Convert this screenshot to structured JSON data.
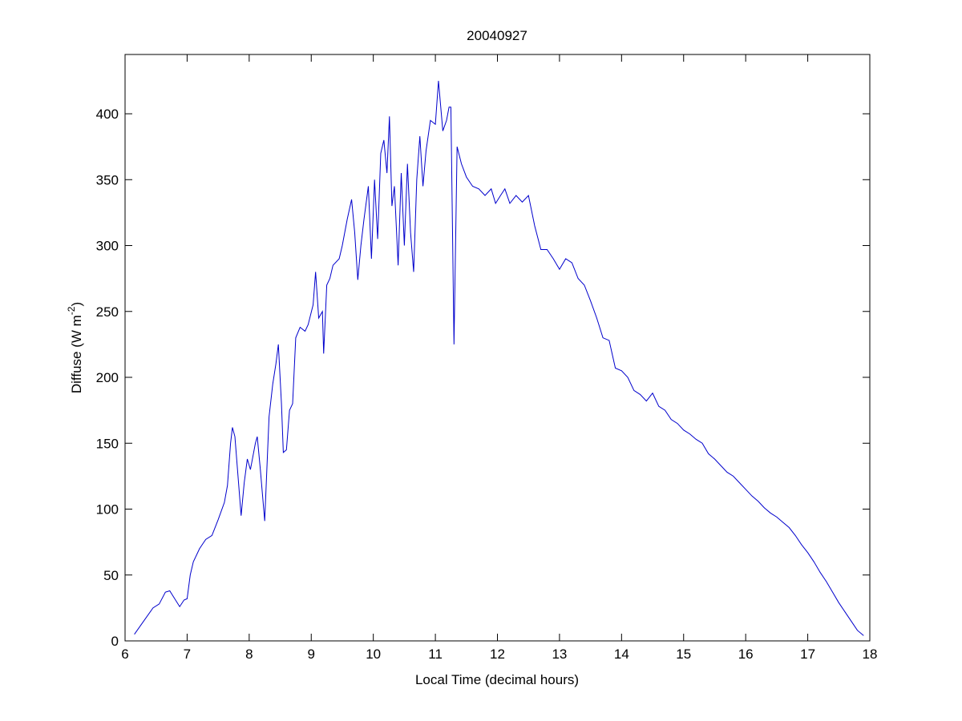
{
  "chart_data": {
    "type": "line",
    "title": "20040927",
    "xlabel": "Local Time (decimal hours)",
    "ylabel": {
      "text": "Diffuse (W m",
      "superscript": "-2",
      "suffix": ")"
    },
    "xlim": [
      6,
      18
    ],
    "xticks": [
      6,
      7,
      8,
      9,
      10,
      11,
      12,
      13,
      14,
      15,
      16,
      17,
      18
    ],
    "ylim": [
      0,
      445
    ],
    "yticks": [
      0,
      50,
      100,
      150,
      200,
      250,
      300,
      350,
      400
    ],
    "grid": false,
    "series": [
      {
        "name": "Diffuse",
        "color": "#0000cc",
        "x": [
          6.15,
          6.3,
          6.45,
          6.55,
          6.65,
          6.72,
          6.8,
          6.88,
          6.95,
          7.0,
          7.05,
          7.1,
          7.2,
          7.3,
          7.4,
          7.5,
          7.6,
          7.65,
          7.7,
          7.73,
          7.77,
          7.82,
          7.87,
          7.92,
          7.97,
          8.02,
          8.1,
          8.13,
          8.18,
          8.25,
          8.32,
          8.38,
          8.43,
          8.47,
          8.52,
          8.55,
          8.6,
          8.65,
          8.7,
          8.75,
          8.82,
          8.9,
          8.95,
          9.03,
          9.07,
          9.12,
          9.18,
          9.2,
          9.25,
          9.3,
          9.35,
          9.45,
          9.5,
          9.58,
          9.65,
          9.7,
          9.75,
          9.8,
          9.85,
          9.92,
          9.97,
          10.02,
          10.07,
          10.12,
          10.17,
          10.22,
          10.26,
          10.3,
          10.34,
          10.4,
          10.45,
          10.5,
          10.55,
          10.6,
          10.65,
          10.7,
          10.75,
          10.8,
          10.85,
          10.92,
          11.0,
          11.05,
          11.12,
          11.18,
          11.22,
          11.25,
          11.3,
          11.35,
          11.42,
          11.5,
          11.6,
          11.7,
          11.8,
          11.9,
          11.97,
          12.05,
          12.12,
          12.2,
          12.3,
          12.4,
          12.5,
          12.6,
          12.7,
          12.8,
          12.9,
          13.0,
          13.1,
          13.2,
          13.3,
          13.4,
          13.5,
          13.6,
          13.7,
          13.8,
          13.9,
          14.0,
          14.1,
          14.2,
          14.3,
          14.4,
          14.5,
          14.6,
          14.7,
          14.8,
          14.9,
          15.0,
          15.1,
          15.2,
          15.3,
          15.4,
          15.5,
          15.6,
          15.7,
          15.8,
          15.9,
          16.0,
          16.1,
          16.2,
          16.3,
          16.4,
          16.5,
          16.6,
          16.7,
          16.8,
          16.9,
          17.0,
          17.1,
          17.2,
          17.3,
          17.4,
          17.5,
          17.6,
          17.7,
          17.8,
          17.9
        ],
        "values": [
          5,
          15,
          25,
          28,
          37,
          38,
          32,
          26,
          31,
          32,
          50,
          60,
          70,
          77,
          80,
          92,
          105,
          118,
          150,
          162,
          155,
          125,
          95,
          120,
          138,
          130,
          150,
          155,
          130,
          91,
          170,
          195,
          210,
          225,
          180,
          143,
          145,
          175,
          180,
          230,
          238,
          235,
          240,
          255,
          280,
          245,
          250,
          218,
          270,
          275,
          285,
          290,
          300,
          320,
          335,
          310,
          274,
          300,
          320,
          345,
          290,
          350,
          305,
          370,
          380,
          355,
          398,
          330,
          345,
          285,
          355,
          300,
          362,
          310,
          280,
          350,
          383,
          345,
          372,
          395,
          392,
          425,
          387,
          395,
          405,
          405,
          225,
          375,
          362,
          352,
          345,
          343,
          338,
          343,
          332,
          338,
          343,
          332,
          338,
          333,
          338,
          315,
          297,
          297,
          290,
          282,
          290,
          287,
          275,
          270,
          258,
          245,
          230,
          228,
          207,
          205,
          200,
          190,
          187,
          182,
          188,
          178,
          175,
          168,
          165,
          160,
          157,
          153,
          150,
          142,
          138,
          133,
          128,
          125,
          120,
          115,
          110,
          106,
          101,
          97,
          94,
          90,
          86,
          80,
          73,
          67,
          60,
          52,
          45,
          37,
          29,
          22,
          15,
          8,
          4
        ]
      }
    ]
  }
}
